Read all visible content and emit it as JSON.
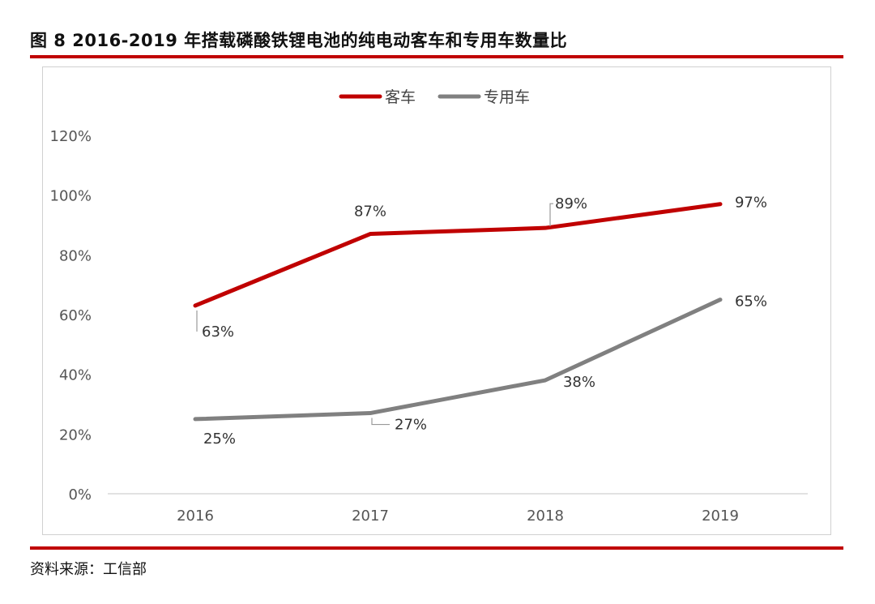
{
  "figure": {
    "title": "图 8 2016-2019 年搭载磷酸铁锂电池的纯电动客车和专用车数量比",
    "source": "资料来源：工信部"
  },
  "colors": {
    "accent_rule": "#c00000",
    "series_bus": "#c00000",
    "series_special": "#808080"
  },
  "chart_data": {
    "type": "line",
    "title": "",
    "xlabel": "",
    "ylabel": "",
    "categories": [
      "2016",
      "2017",
      "2018",
      "2019"
    ],
    "ylim": [
      0,
      120
    ],
    "yticks": [
      "0%",
      "20%",
      "40%",
      "60%",
      "80%",
      "100%",
      "120%"
    ],
    "grid": false,
    "legend_position": "top-center",
    "series": [
      {
        "name": "客车",
        "values": [
          63,
          87,
          89,
          97
        ],
        "labels": [
          "63%",
          "87%",
          "89%",
          "97%"
        ]
      },
      {
        "name": "专用车",
        "values": [
          25,
          27,
          38,
          65
        ],
        "labels": [
          "25%",
          "27%",
          "38%",
          "65%"
        ]
      }
    ]
  }
}
